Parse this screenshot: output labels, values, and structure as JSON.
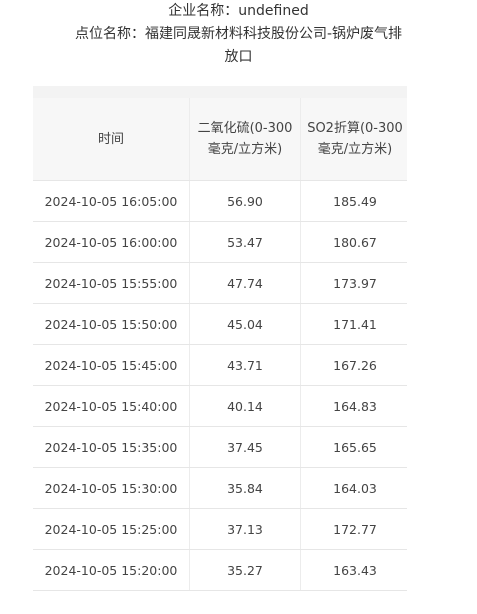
{
  "header": {
    "company_line": "企业名称：undefined",
    "site_line1": "点位名称：福建同晟新材料科技股份公司-锅炉废气排",
    "site_line2": "放口"
  },
  "table": {
    "columns": {
      "time": "时间",
      "so2": "二氧化硫(0-300毫克/立方米)",
      "so2_converted": "SO2折算(0-300毫克/立方米)"
    },
    "rows": [
      {
        "time": "2024-10-05 16:05:00",
        "so2": "56.90",
        "so2_converted": "185.49"
      },
      {
        "time": "2024-10-05 16:00:00",
        "so2": "53.47",
        "so2_converted": "180.67"
      },
      {
        "time": "2024-10-05 15:55:00",
        "so2": "47.74",
        "so2_converted": "173.97"
      },
      {
        "time": "2024-10-05 15:50:00",
        "so2": "45.04",
        "so2_converted": "171.41"
      },
      {
        "time": "2024-10-05 15:45:00",
        "so2": "43.71",
        "so2_converted": "167.26"
      },
      {
        "time": "2024-10-05 15:40:00",
        "so2": "40.14",
        "so2_converted": "164.83"
      },
      {
        "time": "2024-10-05 15:35:00",
        "so2": "37.45",
        "so2_converted": "165.65"
      },
      {
        "time": "2024-10-05 15:30:00",
        "so2": "35.84",
        "so2_converted": "164.03"
      },
      {
        "time": "2024-10-05 15:25:00",
        "so2": "37.13",
        "so2_converted": "172.77"
      },
      {
        "time": "2024-10-05 15:20:00",
        "so2": "35.27",
        "so2_converted": "163.43"
      }
    ]
  }
}
